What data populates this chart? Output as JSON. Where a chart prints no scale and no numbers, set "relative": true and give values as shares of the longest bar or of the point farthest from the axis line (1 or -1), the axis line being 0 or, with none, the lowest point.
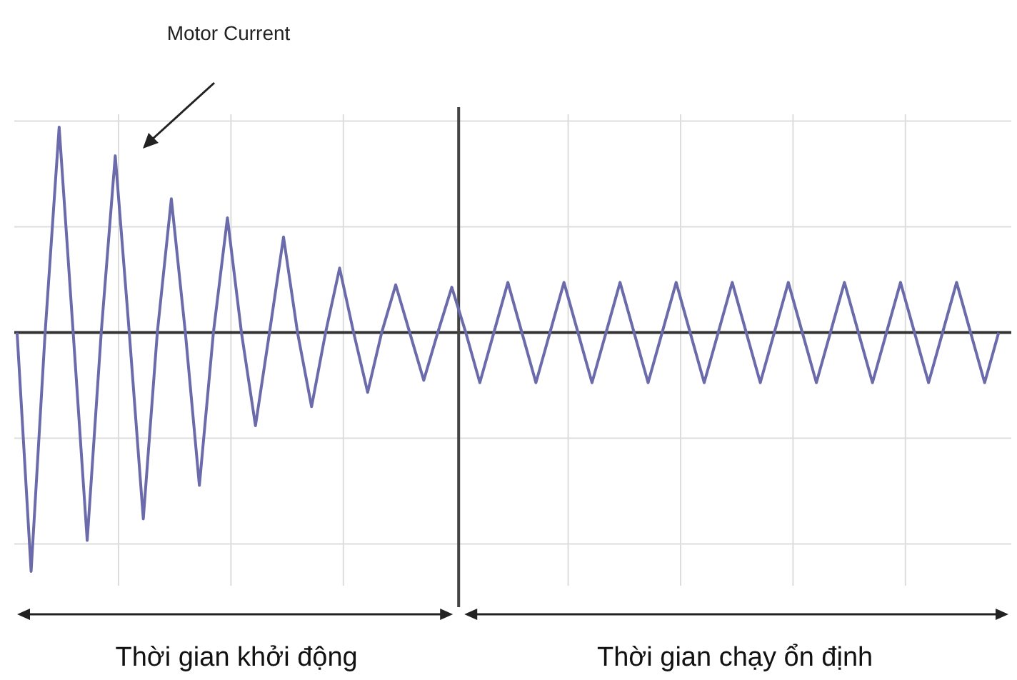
{
  "chart_data": {
    "type": "line",
    "relative": true,
    "grid": true,
    "categories": [
      null,
      null,
      null,
      null,
      null,
      null,
      null,
      null,
      null,
      null,
      null,
      null,
      null,
      null,
      null,
      null,
      null,
      null,
      null,
      null,
      null,
      null,
      null,
      null,
      null,
      null,
      null,
      null,
      null,
      null,
      null,
      null,
      null,
      null,
      null,
      null,
      null,
      null,
      null,
      null,
      null,
      null,
      null,
      null,
      null,
      null,
      null,
      null,
      null,
      null,
      null,
      null,
      null,
      null,
      null,
      null,
      null,
      null,
      null,
      null,
      null,
      null,
      null,
      null,
      null,
      null,
      null,
      null,
      null,
      null,
      null
    ],
    "series": [
      {
        "color": "#6b6bab",
        "values": [
          0,
          -1,
          0,
          0.86,
          0,
          -0.87,
          0,
          0.74,
          0,
          -0.78,
          0,
          0.56,
          0,
          -0.64,
          0,
          0.48,
          0,
          -0.39,
          0,
          0.4,
          0,
          -0.31,
          0,
          0.27,
          0,
          -0.25,
          0,
          0.2,
          0,
          -0.2,
          0,
          0.19,
          0,
          -0.21,
          0,
          0.21,
          0,
          -0.21,
          0,
          0.21,
          0,
          -0.21,
          0,
          0.21,
          0,
          -0.21,
          0,
          0.21,
          0,
          -0.21,
          0,
          0.21,
          0,
          -0.21,
          0,
          0.21,
          0,
          -0.21,
          0,
          0.21,
          0,
          -0.21,
          0,
          0.21,
          0,
          -0.21,
          0,
          0.21,
          0,
          -0.21,
          0
        ]
      }
    ],
    "annotations": [
      "Motor Current",
      "Thời gian khởi động",
      "Thời gian chạy ổn định"
    ]
  }
}
